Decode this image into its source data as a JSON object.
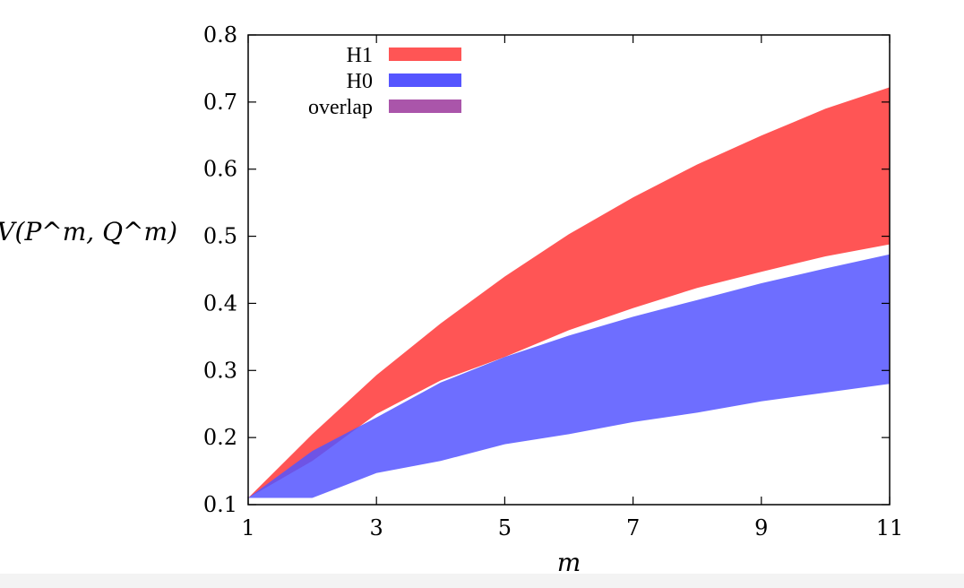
{
  "chart_data": {
    "type": "area",
    "xlabel": "m",
    "ylabel": "d_TV(P^m, Q^m)",
    "xlim": [
      1,
      11
    ],
    "ylim": [
      0.1,
      0.8
    ],
    "xticks": [
      1,
      3,
      5,
      7,
      9,
      11
    ],
    "yticks": [
      0.1,
      0.2,
      0.3,
      0.4,
      0.5,
      0.6,
      0.7,
      0.8
    ],
    "grid": false,
    "legend_position": "top-left",
    "x": [
      1,
      2,
      3,
      4,
      5,
      6,
      7,
      8,
      9,
      10,
      11
    ],
    "series": [
      {
        "name": "H1",
        "color": "#ff5555",
        "lower": [
          0.11,
          0.165,
          0.235,
          0.285,
          0.32,
          0.36,
          0.393,
          0.423,
          0.447,
          0.47,
          0.488
        ],
        "upper": [
          0.11,
          0.205,
          0.293,
          0.37,
          0.44,
          0.503,
          0.558,
          0.607,
          0.65,
          0.69,
          0.722
        ]
      },
      {
        "name": "H0",
        "color": "#5555ff",
        "lower": [
          0.11,
          0.11,
          0.147,
          0.165,
          0.19,
          0.205,
          0.223,
          0.237,
          0.254,
          0.267,
          0.28
        ],
        "upper": [
          0.11,
          0.18,
          0.23,
          0.282,
          0.32,
          0.352,
          0.38,
          0.405,
          0.43,
          0.452,
          0.473
        ]
      }
    ],
    "legend": [
      {
        "label": "H1",
        "color": "#ff5555"
      },
      {
        "label": "H0",
        "color": "#5555ff"
      },
      {
        "label": "overlap",
        "color": "#aa55aa"
      }
    ]
  }
}
